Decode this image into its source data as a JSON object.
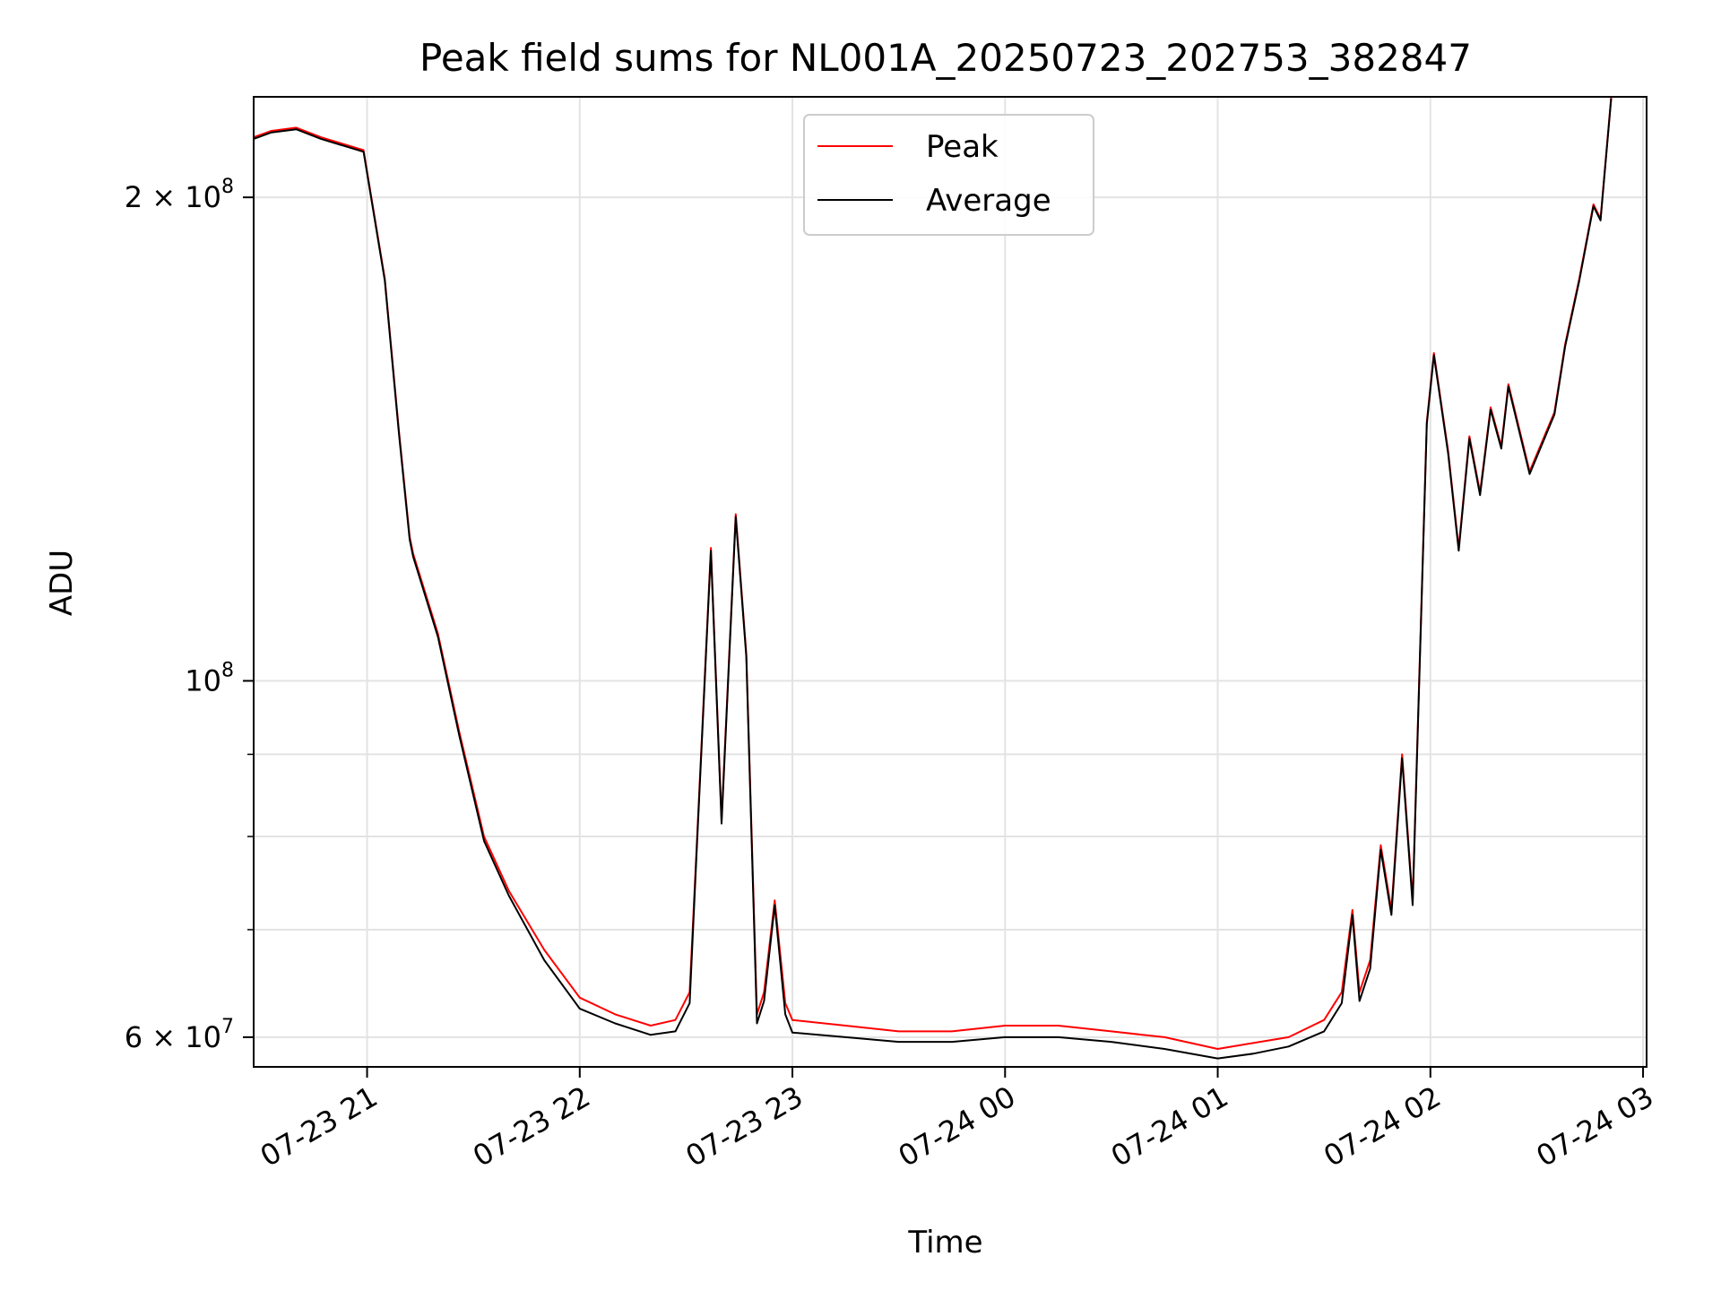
{
  "chart_data": {
    "type": "line",
    "title": "Peak field sums for NL001A_20250723_202753_382847",
    "xlabel": "Time",
    "ylabel": "ADU",
    "y_scale": "log",
    "ylim": [
      57500000,
      231000000
    ],
    "xlim": [
      "07-23 20:28",
      "07-24 03:01"
    ],
    "grid": true,
    "legend_position": "top-center",
    "x_ticks": [
      "07-23 21",
      "07-23 22",
      "07-23 23",
      "07-24 00",
      "07-24 01",
      "07-24 02",
      "07-24 03"
    ],
    "y_ticks": [
      {
        "value": 60000000,
        "mantissa": "6",
        "exponent": "7"
      },
      {
        "value": 100000000,
        "mantissa": "",
        "exponent": "8"
      },
      {
        "value": 200000000,
        "mantissa": "2",
        "exponent": "8"
      }
    ],
    "y_minor_ticks": [
      70000000,
      80000000,
      90000000
    ],
    "series": [
      {
        "name": "Peak",
        "color": "#ff0000",
        "x": [
          "07-23 20:28",
          "07-23 20:33",
          "07-23 20:40",
          "07-23 20:47",
          "07-23 20:59",
          "07-23 21:05",
          "07-23 21:09",
          "07-23 21:12",
          "07-23 21:13",
          "07-23 21:20",
          "07-23 21:26",
          "07-23 21:33",
          "07-23 21:40",
          "07-23 21:50",
          "07-23 22:00",
          "07-23 22:10",
          "07-23 22:20",
          "07-23 22:27",
          "07-23 22:31",
          "07-23 22:33",
          "07-23 22:37",
          "07-23 22:40",
          "07-23 22:44",
          "07-23 22:47",
          "07-23 22:50",
          "07-23 22:52",
          "07-23 22:55",
          "07-23 22:58",
          "07-23 23:00",
          "07-23 23:15",
          "07-23 23:30",
          "07-23 23:45",
          "07-24 00:00",
          "07-24 00:15",
          "07-24 00:30",
          "07-24 00:45",
          "07-24 01:00",
          "07-24 01:10",
          "07-24 01:20",
          "07-24 01:30",
          "07-24 01:35",
          "07-24 01:38",
          "07-24 01:40",
          "07-24 01:43",
          "07-24 01:46",
          "07-24 01:49",
          "07-24 01:52",
          "07-24 01:55",
          "07-24 01:59",
          "07-24 02:01",
          "07-24 02:05",
          "07-24 02:08",
          "07-24 02:11",
          "07-24 02:14",
          "07-24 02:17",
          "07-24 02:20",
          "07-24 02:22",
          "07-24 02:28",
          "07-24 02:35",
          "07-24 02:38",
          "07-24 02:42",
          "07-24 02:46",
          "07-24 02:48",
          "07-24 02:51"
        ],
        "values": [
          218000000,
          220000000,
          221000000,
          218000000,
          214000000,
          178000000,
          143000000,
          123000000,
          120000000,
          107000000,
          93000000,
          80000000,
          74000000,
          68000000,
          63500000,
          62000000,
          61000000,
          61500000,
          64000000,
          79000000,
          121000000,
          82000000,
          127000000,
          104000000,
          62000000,
          64000000,
          73000000,
          63000000,
          61500000,
          61000000,
          60500000,
          60500000,
          61000000,
          61000000,
          60500000,
          60000000,
          59000000,
          59500000,
          60000000,
          61500000,
          64000000,
          72000000,
          64000000,
          67000000,
          79000000,
          72000000,
          90000000,
          73000000,
          145000000,
          160000000,
          139000000,
          121000000,
          142000000,
          131000000,
          148000000,
          140000000,
          153000000,
          135000000,
          147000000,
          162000000,
          178000000,
          198000000,
          194000000,
          231000000
        ]
      },
      {
        "name": "Average",
        "color": "#000000",
        "x": [
          "07-23 20:28",
          "07-23 20:33",
          "07-23 20:40",
          "07-23 20:47",
          "07-23 20:59",
          "07-23 21:05",
          "07-23 21:09",
          "07-23 21:12",
          "07-23 21:13",
          "07-23 21:20",
          "07-23 21:26",
          "07-23 21:33",
          "07-23 21:40",
          "07-23 21:50",
          "07-23 22:00",
          "07-23 22:10",
          "07-23 22:20",
          "07-23 22:27",
          "07-23 22:31",
          "07-23 22:33",
          "07-23 22:37",
          "07-23 22:40",
          "07-23 22:44",
          "07-23 22:47",
          "07-23 22:50",
          "07-23 22:52",
          "07-23 22:55",
          "07-23 22:58",
          "07-23 23:00",
          "07-23 23:15",
          "07-23 23:30",
          "07-23 23:45",
          "07-24 00:00",
          "07-24 00:15",
          "07-24 00:30",
          "07-24 00:45",
          "07-24 01:00",
          "07-24 01:10",
          "07-24 01:20",
          "07-24 01:30",
          "07-24 01:35",
          "07-24 01:38",
          "07-24 01:40",
          "07-24 01:43",
          "07-24 01:46",
          "07-24 01:49",
          "07-24 01:52",
          "07-24 01:55",
          "07-24 01:59",
          "07-24 02:01",
          "07-24 02:05",
          "07-24 02:08",
          "07-24 02:11",
          "07-24 02:14",
          "07-24 02:17",
          "07-24 02:20",
          "07-24 02:22",
          "07-24 02:28",
          "07-24 02:35",
          "07-24 02:38",
          "07-24 02:42",
          "07-24 02:46",
          "07-24 02:48",
          "07-24 02:51"
        ],
        "values": [
          217500000,
          219500000,
          220500000,
          217500000,
          213500000,
          177500000,
          142500000,
          122500000,
          119500000,
          106500000,
          92500000,
          79500000,
          73500000,
          67000000,
          62500000,
          61200000,
          60200000,
          60500000,
          63000000,
          78500000,
          120500000,
          81500000,
          126500000,
          103500000,
          61200000,
          63200000,
          72500000,
          62000000,
          60400000,
          60000000,
          59600000,
          59600000,
          60000000,
          60000000,
          59600000,
          59000000,
          58200000,
          58600000,
          59200000,
          60500000,
          63000000,
          71500000,
          63200000,
          66200000,
          78500000,
          71500000,
          89500000,
          72500000,
          144500000,
          159500000,
          138500000,
          120500000,
          141500000,
          130500000,
          147500000,
          139500000,
          152500000,
          134500000,
          146500000,
          161500000,
          177500000,
          197500000,
          193500000,
          230500000
        ]
      }
    ]
  }
}
